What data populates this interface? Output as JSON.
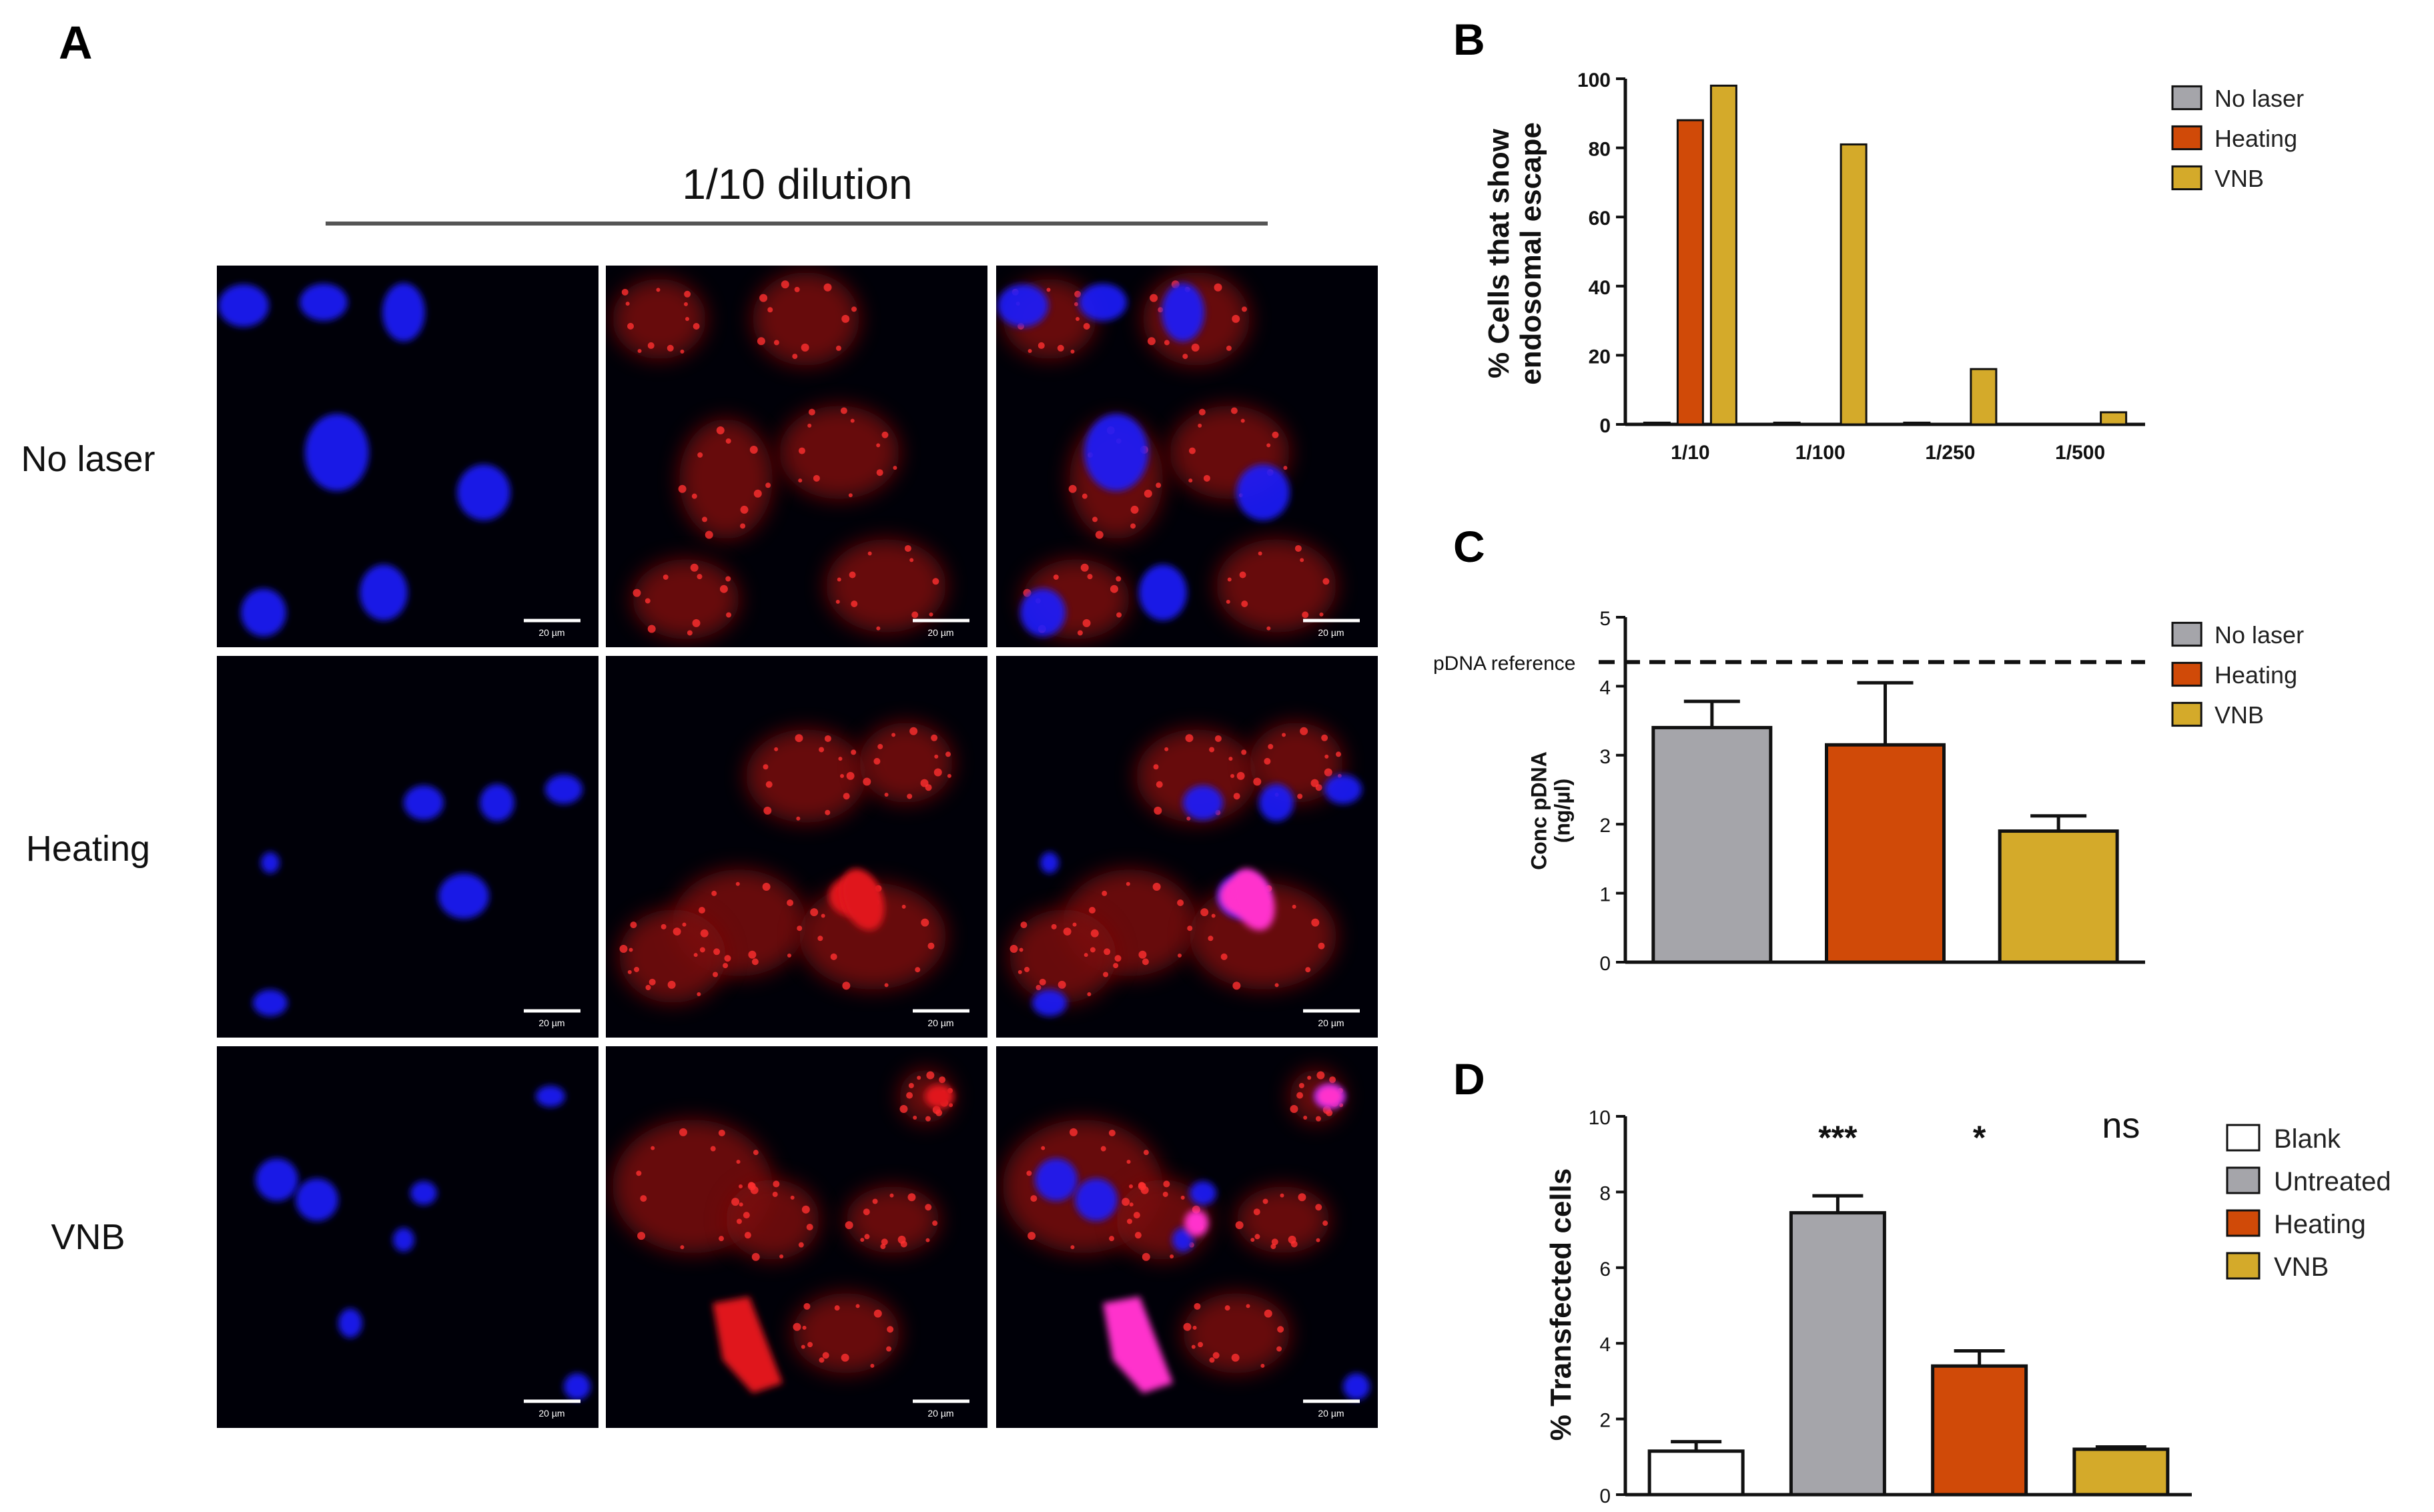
{
  "panel_a": {
    "letter": "A",
    "header": "1/10 dilution",
    "rows": [
      "No laser",
      "Heating",
      "VNB"
    ],
    "scale_bar_label": "20 µm",
    "channel_colors": [
      "#1a1aff",
      "#e0161b",
      "#ff33cc"
    ]
  },
  "panel_b": {
    "letter": "B"
  },
  "panel_c": {
    "letter": "C"
  },
  "panel_d": {
    "letter": "D"
  },
  "chart_data": [
    {
      "type": "bar",
      "panel": "B",
      "ylabel": [
        "% Cells that show",
        "endosomal escape"
      ],
      "ylim": [
        0,
        100
      ],
      "yticks": [
        0,
        20,
        40,
        60,
        80,
        100
      ],
      "categories": [
        "1/10",
        "1/100",
        "1/250",
        "1/500"
      ],
      "series": [
        {
          "name": "No laser",
          "color": "#a5a5aa",
          "values": [
            0.5,
            0.5,
            0.5,
            0
          ]
        },
        {
          "name": "Heating",
          "color": "#d04a08",
          "values": [
            88,
            0,
            0,
            0
          ]
        },
        {
          "name": "VNB",
          "color": "#d4aa2a",
          "values": [
            98,
            81,
            16,
            3.5
          ]
        }
      ],
      "legend_position": "right"
    },
    {
      "type": "bar",
      "panel": "C",
      "ylabel": [
        "Conc pDNA",
        "(ng/µl)"
      ],
      "ylim": [
        0,
        5
      ],
      "yticks": [
        0,
        1,
        2,
        3,
        4,
        5
      ],
      "categories": [
        "No laser",
        "Heating",
        "VNB"
      ],
      "values": [
        3.4,
        3.15,
        1.9
      ],
      "errors": [
        0.38,
        0.9,
        0.22
      ],
      "colors": [
        "#a5a5aa",
        "#d04a08",
        "#d4aa2a"
      ],
      "reference_line": {
        "value": 4.35,
        "label": "pDNA reference"
      },
      "legend": [
        {
          "name": "No laser",
          "color": "#a5a5aa"
        },
        {
          "name": "Heating",
          "color": "#d04a08"
        },
        {
          "name": "VNB",
          "color": "#d4aa2a"
        }
      ],
      "legend_position": "right"
    },
    {
      "type": "bar",
      "panel": "D",
      "ylabel": "% Transfected cells",
      "ylim": [
        0,
        10
      ],
      "yticks": [
        0,
        2,
        4,
        6,
        8,
        10
      ],
      "categories": [
        "Blank",
        "Untreated",
        "Heating",
        "VNB"
      ],
      "values": [
        1.15,
        7.45,
        3.4,
        1.2
      ],
      "errors": [
        0.25,
        0.45,
        0.4,
        0.06
      ],
      "colors": [
        "#ffffff",
        "#a5a5aa",
        "#d04a08",
        "#d4aa2a"
      ],
      "significance": [
        "",
        "***",
        "*",
        "ns"
      ],
      "legend": [
        {
          "name": "Blank",
          "color": "#ffffff"
        },
        {
          "name": "Untreated",
          "color": "#a5a5aa"
        },
        {
          "name": "Heating",
          "color": "#d04a08"
        },
        {
          "name": "VNB",
          "color": "#d4aa2a"
        }
      ],
      "legend_position": "right"
    }
  ]
}
